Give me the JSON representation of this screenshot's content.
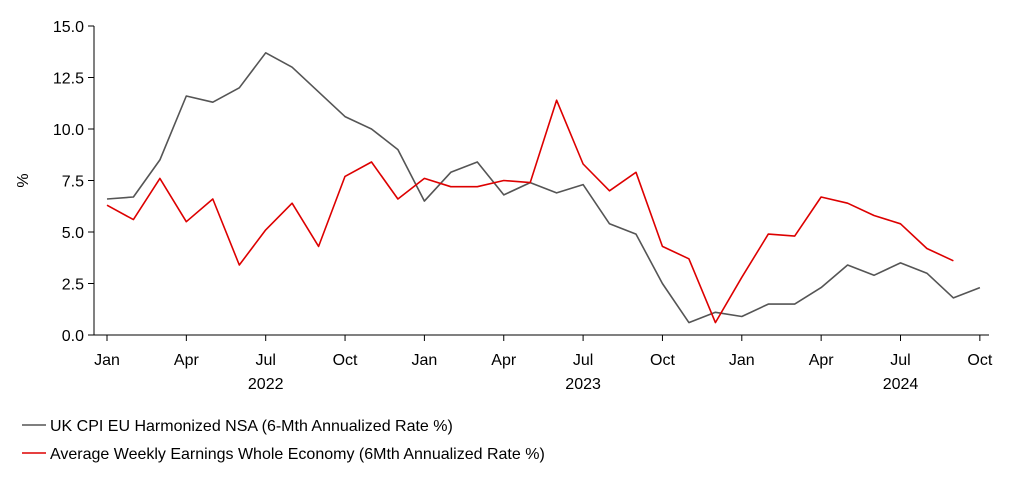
{
  "chart_data": {
    "type": "line",
    "ylabel": "%",
    "ylim": [
      0,
      15
    ],
    "yticks": [
      "0.0",
      "2.5",
      "5.0",
      "7.5",
      "10.0",
      "12.5",
      "15.0"
    ],
    "x_start": "2022-01",
    "x_end": "2024-11",
    "xtick_labels": [
      {
        "month": "2022-01",
        "label": "Jan"
      },
      {
        "month": "2022-04",
        "label": "Apr"
      },
      {
        "month": "2022-07",
        "label": "Jul"
      },
      {
        "month": "2022-10",
        "label": "Oct"
      },
      {
        "month": "2023-01",
        "label": "Jan"
      },
      {
        "month": "2023-04",
        "label": "Apr"
      },
      {
        "month": "2023-07",
        "label": "Jul"
      },
      {
        "month": "2023-10",
        "label": "Oct"
      },
      {
        "month": "2024-01",
        "label": "Jan"
      },
      {
        "month": "2024-04",
        "label": "Apr"
      },
      {
        "month": "2024-07",
        "label": "Jul"
      },
      {
        "month": "2024-10",
        "label": "Oct"
      }
    ],
    "year_labels": [
      {
        "month": "2022-07",
        "label": "2022"
      },
      {
        "month": "2023-07",
        "label": "2023"
      },
      {
        "month": "2024-07",
        "label": "2024"
      }
    ],
    "legend_position": "bottom-left",
    "grid": false,
    "series": [
      {
        "name": "UK CPI EU Harmonized NSA (6-Mth Annualized Rate %)",
        "color": "#555555",
        "x": [
          "2022-01",
          "2022-02",
          "2022-03",
          "2022-04",
          "2022-05",
          "2022-06",
          "2022-07",
          "2022-08",
          "2022-09",
          "2022-10",
          "2022-11",
          "2022-12",
          "2023-01",
          "2023-02",
          "2023-03",
          "2023-04",
          "2023-05",
          "2023-06",
          "2023-07",
          "2023-08",
          "2023-09",
          "2023-10",
          "2023-11",
          "2023-12",
          "2024-01",
          "2024-02",
          "2024-03",
          "2024-04",
          "2024-05",
          "2024-06",
          "2024-07",
          "2024-08",
          "2024-09",
          "2024-10"
        ],
        "values": [
          6.6,
          6.7,
          8.5,
          11.6,
          11.3,
          12.0,
          13.7,
          13.0,
          11.8,
          10.6,
          10.0,
          9.0,
          6.5,
          7.9,
          8.4,
          6.8,
          7.4,
          6.9,
          7.3,
          5.4,
          4.9,
          2.5,
          0.6,
          1.1,
          0.9,
          1.5,
          1.5,
          2.3,
          3.4,
          2.9,
          3.5,
          3.0,
          1.8,
          2.3
        ]
      },
      {
        "name": "Average Weekly Earnings Whole Economy (6Mth Annualized Rate %)",
        "color": "#dd0000",
        "x": [
          "2022-01",
          "2022-02",
          "2022-03",
          "2022-04",
          "2022-05",
          "2022-06",
          "2022-07",
          "2022-08",
          "2022-09",
          "2022-10",
          "2022-11",
          "2022-12",
          "2023-01",
          "2023-02",
          "2023-03",
          "2023-04",
          "2023-05",
          "2023-06",
          "2023-07",
          "2023-08",
          "2023-09",
          "2023-10",
          "2023-11",
          "2023-12",
          "2024-01",
          "2024-02",
          "2024-03",
          "2024-04",
          "2024-05",
          "2024-06",
          "2024-07",
          "2024-08",
          "2024-09"
        ],
        "values": [
          6.3,
          5.6,
          7.6,
          5.5,
          6.6,
          3.4,
          5.1,
          6.4,
          4.3,
          7.7,
          8.4,
          6.6,
          7.6,
          7.2,
          7.2,
          7.5,
          7.4,
          11.4,
          8.3,
          7.0,
          7.9,
          4.3,
          3.7,
          0.6,
          2.8,
          4.9,
          4.8,
          6.7,
          6.4,
          5.8,
          5.4,
          4.2,
          3.6
        ]
      }
    ]
  }
}
